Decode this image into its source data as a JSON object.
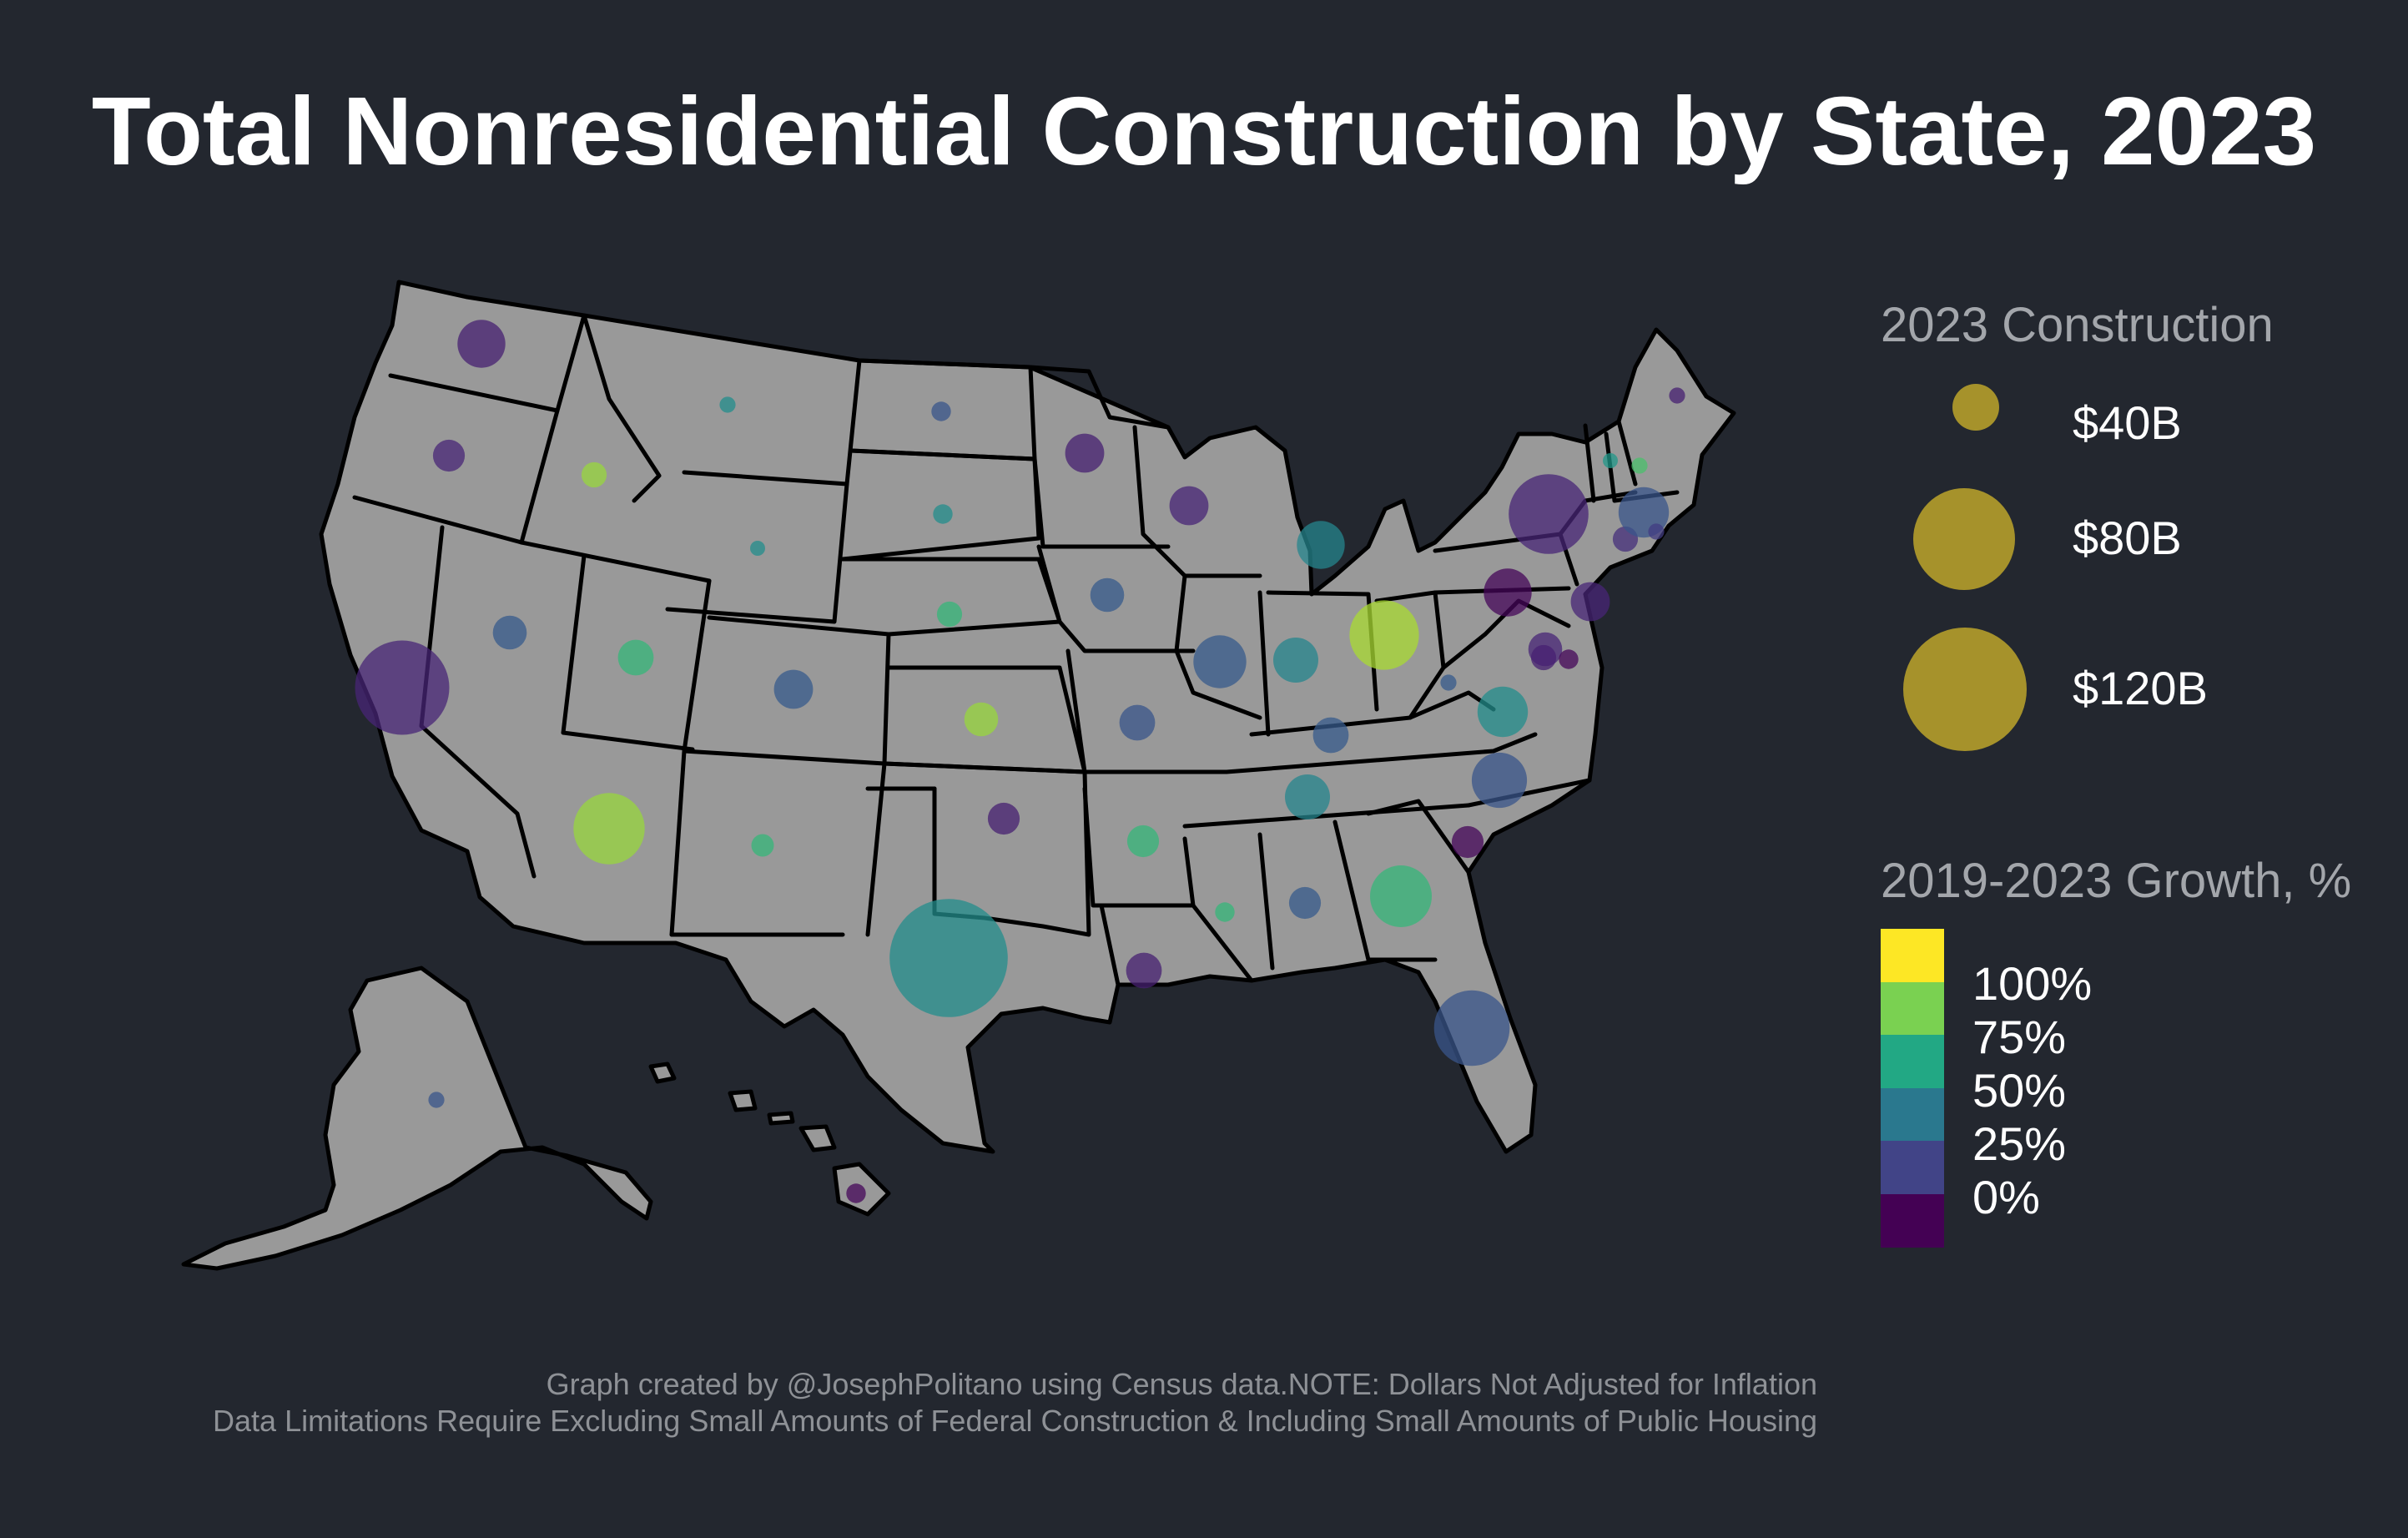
{
  "title": "Total Nonresidential Construction by State, 2023",
  "size_legend": {
    "title": "2023 Construction",
    "items": [
      {
        "label": "$40B",
        "value": 40
      },
      {
        "label": "$80B",
        "value": 80
      },
      {
        "label": "$120B",
        "value": 120
      }
    ],
    "color": "#b59f2b"
  },
  "color_legend": {
    "title": "2019-2023 Growth, %",
    "labels": [
      "100%",
      "75%",
      "50%",
      "25%",
      "0%"
    ],
    "colors": [
      "#fde725",
      "#7ad151",
      "#22a884",
      "#2a788e",
      "#414487",
      "#440154"
    ]
  },
  "captions": {
    "line1": "Graph created by @JosephPolitano using Census data.NOTE: Dollars Not Adjusted for Inflation",
    "line2": "Data Limitations Require Excluding Small Amounts of Federal Construction & Including Small Amounts of Public Housing"
  },
  "map": {
    "state_fill": "#999999",
    "border_color": "#000000",
    "background": "#23272f"
  },
  "chart_data": {
    "type": "bubble-map",
    "size_variable": "2023 Construction ($B)",
    "color_variable": "2019-2023 Growth, %",
    "points": [
      {
        "state": "WA",
        "value": 18,
        "growth": 10
      },
      {
        "state": "OR",
        "value": 8,
        "growth": 12
      },
      {
        "state": "CA",
        "value": 70,
        "growth": 12
      },
      {
        "state": "ID",
        "value": 5,
        "growth": 95
      },
      {
        "state": "NV",
        "value": 9,
        "growth": 32
      },
      {
        "state": "MT",
        "value": 2,
        "growth": 55
      },
      {
        "state": "WY",
        "value": 1.5,
        "growth": 55
      },
      {
        "state": "UT",
        "value": 10,
        "growth": 75
      },
      {
        "state": "AZ",
        "value": 40,
        "growth": 95
      },
      {
        "state": "CO",
        "value": 12,
        "growth": 32
      },
      {
        "state": "NM",
        "value": 4,
        "growth": 75
      },
      {
        "state": "ND",
        "value": 3,
        "growth": 30
      },
      {
        "state": "SD",
        "value": 3,
        "growth": 55
      },
      {
        "state": "NE",
        "value": 5,
        "growth": 75
      },
      {
        "state": "KS",
        "value": 9,
        "growth": 95
      },
      {
        "state": "OK",
        "value": 8,
        "growth": 10
      },
      {
        "state": "TX",
        "value": 110,
        "growth": 55
      },
      {
        "state": "MN",
        "value": 12,
        "growth": 10
      },
      {
        "state": "IA",
        "value": 9,
        "growth": 32
      },
      {
        "state": "MO",
        "value": 10,
        "growth": 30
      },
      {
        "state": "AR",
        "value": 8,
        "growth": 75
      },
      {
        "state": "LA",
        "value": 10,
        "growth": 10
      },
      {
        "state": "WI",
        "value": 12,
        "growth": 12
      },
      {
        "state": "IL",
        "value": 22,
        "growth": 32
      },
      {
        "state": "MI",
        "value": 18,
        "growth": 52
      },
      {
        "state": "IN",
        "value": 16,
        "growth": 52
      },
      {
        "state": "OH",
        "value": 38,
        "growth": 98
      },
      {
        "state": "KY",
        "value": 10,
        "growth": 32
      },
      {
        "state": "TN",
        "value": 16,
        "growth": 52
      },
      {
        "state": "MS",
        "value": 3,
        "growth": 75
      },
      {
        "state": "AL",
        "value": 8,
        "growth": 32
      },
      {
        "state": "GA",
        "value": 30,
        "growth": 75
      },
      {
        "state": "FL",
        "value": 45,
        "growth": 30
      },
      {
        "state": "SC",
        "value": 8,
        "growth": 2
      },
      {
        "state": "NC",
        "value": 24,
        "growth": 30
      },
      {
        "state": "VA",
        "value": 20,
        "growth": 55
      },
      {
        "state": "WV",
        "value": 2,
        "growth": 32
      },
      {
        "state": "PA",
        "value": 18,
        "growth": 2
      },
      {
        "state": "NY",
        "value": 50,
        "growth": 12
      },
      {
        "state": "NJ",
        "value": 12,
        "growth": 12
      },
      {
        "state": "MD",
        "value": 9,
        "growth": 12
      },
      {
        "state": "DC",
        "value": 5,
        "growth": 10
      },
      {
        "state": "DE",
        "value": 3,
        "growth": 2
      },
      {
        "state": "CT",
        "value": 5,
        "growth": 15
      },
      {
        "state": "MA",
        "value": 20,
        "growth": 30
      },
      {
        "state": "VT",
        "value": 1,
        "growth": 60
      },
      {
        "state": "NH",
        "value": 2,
        "growth": 80
      },
      {
        "state": "ME",
        "value": 2,
        "growth": 10
      },
      {
        "state": "RI",
        "value": 2,
        "growth": 20
      },
      {
        "state": "AK",
        "value": 2,
        "growth": 30
      },
      {
        "state": "HI",
        "value": 3,
        "growth": 2
      }
    ]
  }
}
